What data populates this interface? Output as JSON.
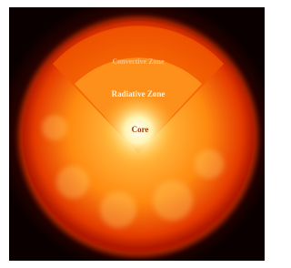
{
  "labels": {
    "convective": "Convective Zone",
    "radiative": "Radiative Zone",
    "core": "Core"
  }
}
